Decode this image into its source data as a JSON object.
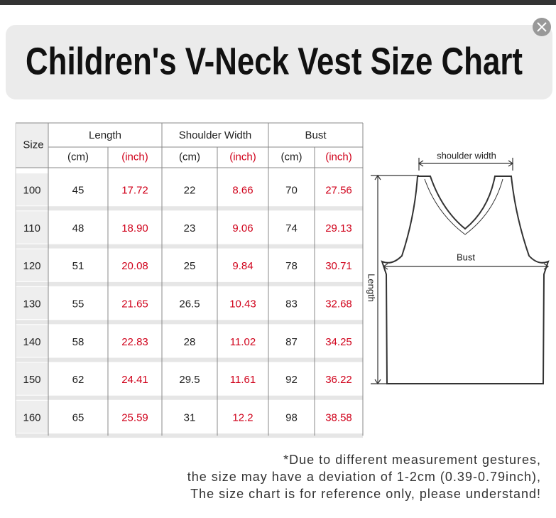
{
  "title": "Children's V-Neck Vest Size Chart",
  "table": {
    "size_header": "Size",
    "groups": [
      "Length",
      "Shoulder Width",
      "Bust"
    ],
    "units": [
      "(cm)",
      "(inch)",
      "(cm)",
      "(inch)",
      "(cm)",
      "(inch)"
    ],
    "rows": [
      [
        "100",
        "45",
        "17.72",
        "22",
        "8.66",
        "70",
        "27.56"
      ],
      [
        "110",
        "48",
        "18.90",
        "23",
        "9.06",
        "74",
        "29.13"
      ],
      [
        "120",
        "51",
        "20.08",
        "25",
        "9.84",
        "78",
        "30.71"
      ],
      [
        "130",
        "55",
        "21.65",
        "26.5",
        "10.43",
        "83",
        "32.68"
      ],
      [
        "140",
        "58",
        "22.83",
        "28",
        "11.02",
        "87",
        "34.25"
      ],
      [
        "150",
        "62",
        "24.41",
        "29.5",
        "11.61",
        "92",
        "36.22"
      ],
      [
        "160",
        "65",
        "25.59",
        "31",
        "12.2",
        "98",
        "38.58"
      ]
    ]
  },
  "diagram": {
    "shoulder": "shoulder width",
    "bust": "Bust",
    "length": "Length"
  },
  "note": [
    "*Due to different measurement gestures,",
    "the size may have a deviation of 1-2cm (0.39-0.79inch),",
    "The size chart is for reference only, please understand!"
  ]
}
